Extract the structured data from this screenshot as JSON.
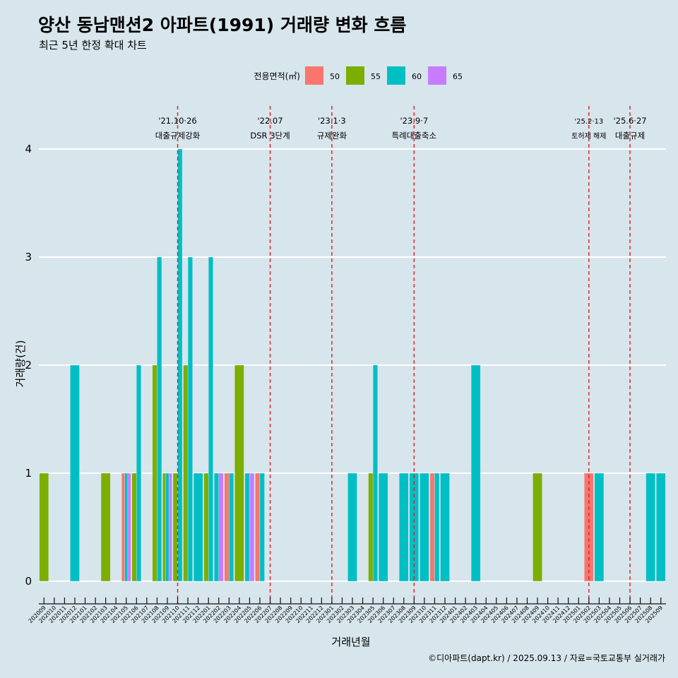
{
  "title": "양산 동남맨션2 아파트(1991) 거래량 변화 흐름",
  "subtitle": "최근 5년 한정 확대 차트",
  "caption": "©디아파트(dapt.kr) / 2025.09.13 / 자료=국토교통부 실거래가",
  "chart_data": {
    "type": "bar",
    "title": "양산 동남맨션2 아파트(1991) 거래량 변화 흐름",
    "subtitle": "최근 5년 한정 확대 차트",
    "xlabel": "거래년월",
    "ylabel": "거래량(건)",
    "ylim": [
      0,
      4
    ],
    "yticks": [
      0,
      1,
      2,
      3,
      4
    ],
    "grid": true,
    "legend": {
      "title": "전용면적(㎡)",
      "placement": "top"
    },
    "categories": [
      "202009",
      "202010",
      "202011",
      "202012",
      "202101",
      "202102",
      "202103",
      "202104",
      "202105",
      "202106",
      "202107",
      "202108",
      "202109",
      "202110",
      "202111",
      "202112",
      "202201",
      "202202",
      "202203",
      "202204",
      "202205",
      "202206",
      "202207",
      "202208",
      "202209",
      "202210",
      "202211",
      "202212",
      "202301",
      "202302",
      "202303",
      "202304",
      "202305",
      "202306",
      "202307",
      "202308",
      "202309",
      "202310",
      "202311",
      "202312",
      "202401",
      "202402",
      "202403",
      "202404",
      "202405",
      "202406",
      "202407",
      "202408",
      "202409",
      "202410",
      "202411",
      "202412",
      "202501",
      "202502",
      "202503",
      "202504",
      "202505",
      "202506",
      "202507",
      "202508",
      "202509"
    ],
    "series": [
      {
        "name": "50",
        "color": "#f8766d",
        "values": [
          0,
          0,
          0,
          0,
          0,
          0,
          0,
          0,
          1,
          0,
          0,
          0,
          0,
          0,
          0,
          0,
          0,
          0,
          1,
          0,
          0,
          1,
          0,
          0,
          0,
          0,
          0,
          0,
          0,
          0,
          0,
          0,
          0,
          0,
          0,
          0,
          0,
          0,
          1,
          0,
          0,
          0,
          0,
          0,
          0,
          0,
          0,
          0,
          0,
          0,
          0,
          0,
          0,
          1,
          0,
          0,
          0,
          0,
          0,
          0,
          0
        ]
      },
      {
        "name": "55",
        "color": "#7cae00",
        "values": [
          1,
          0,
          0,
          0,
          0,
          0,
          1,
          0,
          0,
          1,
          0,
          2,
          1,
          1,
          2,
          0,
          1,
          0,
          0,
          2,
          0,
          0,
          0,
          0,
          0,
          0,
          0,
          0,
          0,
          0,
          0,
          0,
          1,
          0,
          0,
          0,
          0,
          0,
          0,
          0,
          0,
          0,
          0,
          0,
          0,
          0,
          0,
          0,
          1,
          0,
          0,
          0,
          0,
          0,
          0,
          0,
          0,
          0,
          0,
          0,
          0
        ]
      },
      {
        "name": "60",
        "color": "#00bfc4",
        "values": [
          0,
          0,
          0,
          2,
          0,
          0,
          0,
          0,
          1,
          2,
          0,
          3,
          1,
          4,
          3,
          1,
          3,
          1,
          1,
          0,
          1,
          1,
          0,
          0,
          0,
          0,
          0,
          0,
          0,
          0,
          1,
          0,
          2,
          1,
          0,
          1,
          1,
          1,
          1,
          1,
          0,
          0,
          2,
          0,
          0,
          0,
          0,
          0,
          0,
          0,
          0,
          0,
          0,
          0,
          1,
          0,
          0,
          0,
          0,
          1,
          1
        ]
      },
      {
        "name": "65",
        "color": "#c77cff",
        "values": [
          0,
          0,
          0,
          0,
          0,
          0,
          0,
          0,
          1,
          0,
          0,
          0,
          1,
          0,
          0,
          0,
          0,
          1,
          0,
          0,
          1,
          0,
          0,
          0,
          0,
          0,
          0,
          0,
          0,
          0,
          0,
          0,
          0,
          0,
          0,
          0,
          0,
          0,
          0,
          0,
          0,
          0,
          0,
          0,
          0,
          0,
          0,
          0,
          0,
          0,
          0,
          0,
          0,
          0,
          0,
          0,
          0,
          0,
          0,
          0,
          0
        ]
      }
    ],
    "events": [
      {
        "month": "202110",
        "line1": "'21.10·26",
        "line2": "대출규제강화",
        "small": false
      },
      {
        "month": "202207",
        "line1": "'22.07",
        "line2": "DSR 3단계",
        "small": false
      },
      {
        "month": "202301",
        "line1": "'23.1·3",
        "line2": "규제완화",
        "small": false
      },
      {
        "month": "202309",
        "line1": "'23.9·7",
        "line2": "특례대출축소",
        "small": false
      },
      {
        "month": "202502",
        "line1": "'25.2·13",
        "line2": "토허제 해제",
        "small": true
      },
      {
        "month": "202506",
        "line1": "'25.6·27",
        "line2": "대출규제",
        "small": false
      }
    ]
  }
}
